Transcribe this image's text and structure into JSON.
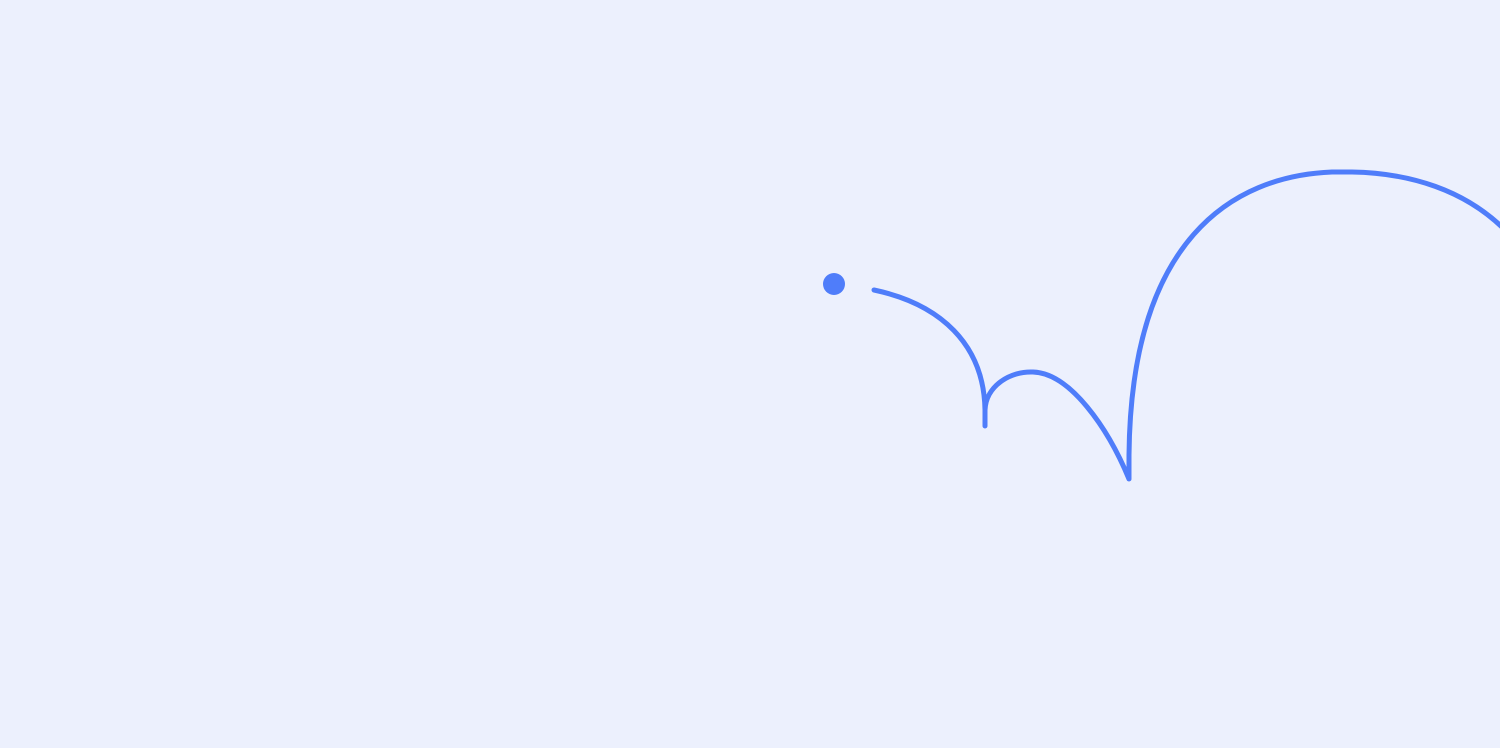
{
  "colors": {
    "background": "#ECF0FD",
    "accent": "#4F7DFA"
  },
  "illustration": {
    "dot_icon": "filled-circle",
    "path_icon": "bouncing-arc-path"
  }
}
